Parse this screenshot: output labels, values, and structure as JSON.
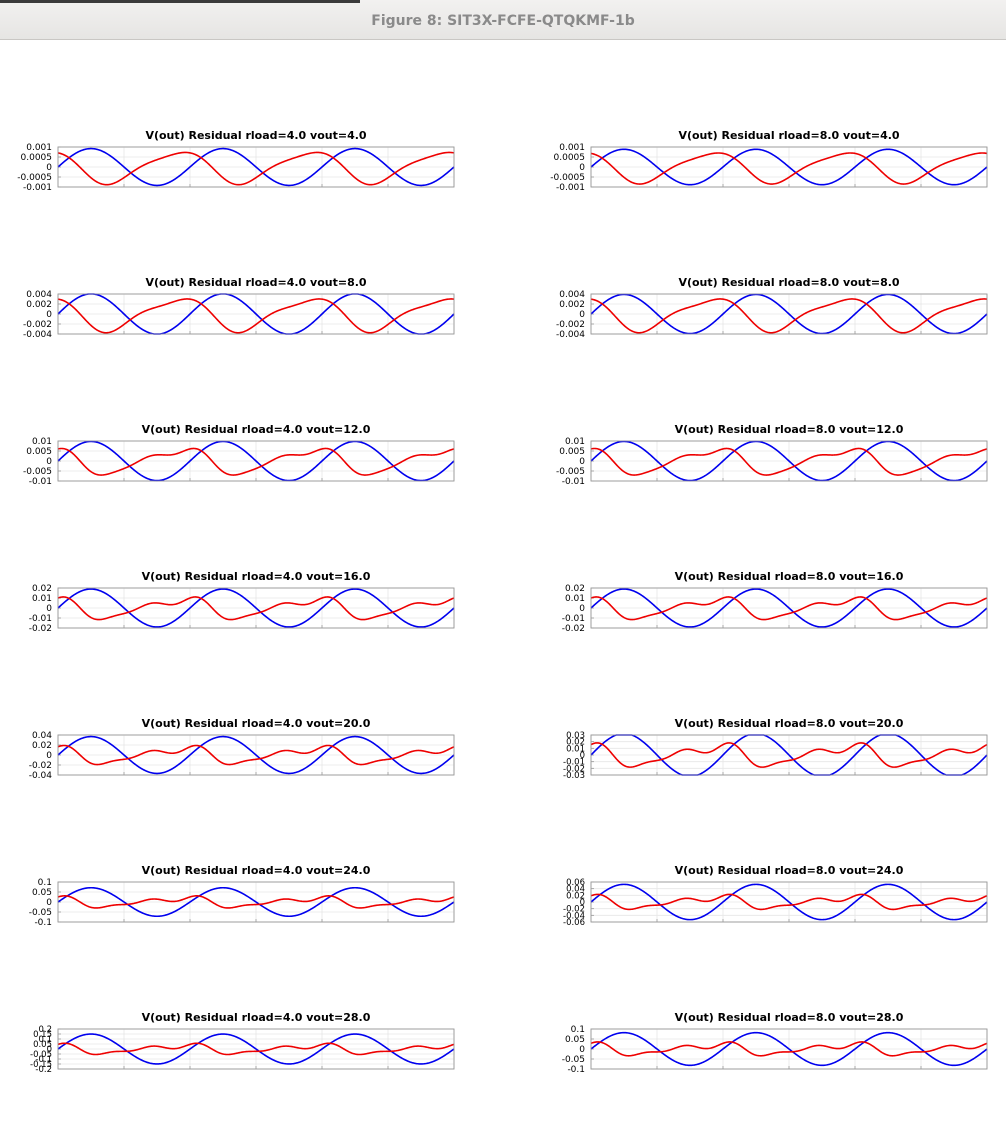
{
  "window": {
    "title": "Figure 8: SIT3X-FCFE-QTQKMF-1b"
  },
  "colors": {
    "blue_series": "#0000ee",
    "red_series": "#ee0000",
    "grid": "#e6e6e6",
    "axes": "#999999"
  },
  "chart_data": [
    {
      "type": "line",
      "title": "V(out) Residual  rload=4.0 vout=4.0",
      "ylim": [
        -0.001,
        0.001
      ],
      "yticks": [
        "0.001",
        "0.0005",
        "0",
        "-0.0005",
        "-0.001"
      ],
      "grid": true,
      "cycles": 3,
      "series": [
        {
          "color": "blue",
          "amplitude": 0.0008,
          "phase": 0,
          "harmonics": []
        },
        {
          "color": "red",
          "amplitude": 0.0008,
          "phase": 2.2,
          "harmonics": [
            [
              2,
              0.2,
              0.6
            ]
          ]
        }
      ]
    },
    {
      "type": "line",
      "title": "V(out) Residual  rload=8.0 vout=4.0",
      "ylim": [
        -0.001,
        0.001
      ],
      "yticks": [
        "0.001",
        "0.0005",
        "0",
        "-0.0005",
        "-0.001"
      ],
      "grid": true,
      "cycles": 3,
      "series": [
        {
          "color": "blue",
          "amplitude": 0.00077,
          "phase": 0,
          "harmonics": []
        },
        {
          "color": "red",
          "amplitude": 0.00077,
          "phase": 2.2,
          "harmonics": [
            [
              2,
              0.2,
              0.6
            ]
          ]
        }
      ]
    },
    {
      "type": "line",
      "title": "V(out) Residual  rload=4.0 vout=8.0",
      "ylim": [
        -0.004,
        0.004
      ],
      "yticks": [
        "0.004",
        "0.002",
        "0",
        "-0.002",
        "-0.004"
      ],
      "grid": true,
      "cycles": 3,
      "series": [
        {
          "color": "blue",
          "amplitude": 0.0035,
          "phase": 0,
          "harmonics": []
        },
        {
          "color": "red",
          "amplitude": 0.0034,
          "phase": 2.2,
          "harmonics": [
            [
              2,
              0.25,
              0.6
            ]
          ]
        }
      ]
    },
    {
      "type": "line",
      "title": "V(out) Residual  rload=8.0 vout=8.0",
      "ylim": [
        -0.004,
        0.004
      ],
      "yticks": [
        "0.004",
        "0.002",
        "0",
        "-0.002",
        "-0.004"
      ],
      "grid": true,
      "cycles": 3,
      "series": [
        {
          "color": "blue",
          "amplitude": 0.0034,
          "phase": 0,
          "harmonics": []
        },
        {
          "color": "red",
          "amplitude": 0.0034,
          "phase": 2.2,
          "harmonics": [
            [
              2,
              0.25,
              0.6
            ]
          ]
        }
      ]
    },
    {
      "type": "line",
      "title": "V(out) Residual  rload=4.0 vout=12.0",
      "ylim": [
        -0.01,
        0.01
      ],
      "yticks": [
        "0.01",
        "0.005",
        "0",
        "-0.005",
        "-0.01"
      ],
      "grid": true,
      "cycles": 3,
      "series": [
        {
          "color": "blue",
          "amplitude": 0.0085,
          "phase": 0,
          "harmonics": []
        },
        {
          "color": "red",
          "amplitude": 0.0075,
          "phase": 2.2,
          "harmonics": [
            [
              2,
              0.35,
              0.6
            ],
            [
              3,
              0.15,
              0.3
            ]
          ]
        }
      ]
    },
    {
      "type": "line",
      "title": "V(out) Residual  rload=8.0 vout=12.0",
      "ylim": [
        -0.01,
        0.01
      ],
      "yticks": [
        "0.01",
        "0.005",
        "0",
        "-0.005",
        "-0.01"
      ],
      "grid": true,
      "cycles": 3,
      "series": [
        {
          "color": "blue",
          "amplitude": 0.0085,
          "phase": 0,
          "harmonics": []
        },
        {
          "color": "red",
          "amplitude": 0.0075,
          "phase": 2.2,
          "harmonics": [
            [
              2,
              0.35,
              0.6
            ],
            [
              3,
              0.15,
              0.3
            ]
          ]
        }
      ]
    },
    {
      "type": "line",
      "title": "V(out) Residual  rload=4.0 vout=16.0",
      "ylim": [
        -0.02,
        0.02
      ],
      "yticks": [
        "0.02",
        "0.01",
        "0",
        "-0.01",
        "-0.02"
      ],
      "grid": true,
      "cycles": 3,
      "series": [
        {
          "color": "blue",
          "amplitude": 0.0165,
          "phase": 0,
          "harmonics": []
        },
        {
          "color": "red",
          "amplitude": 0.013,
          "phase": 2.2,
          "harmonics": [
            [
              2,
              0.45,
              0.6
            ],
            [
              3,
              0.25,
              0.3
            ]
          ]
        }
      ]
    },
    {
      "type": "line",
      "title": "V(out) Residual  rload=8.0 vout=16.0",
      "ylim": [
        -0.02,
        0.02
      ],
      "yticks": [
        "0.02",
        "0.01",
        "0",
        "-0.01",
        "-0.02"
      ],
      "grid": true,
      "cycles": 3,
      "series": [
        {
          "color": "blue",
          "amplitude": 0.0165,
          "phase": 0,
          "harmonics": []
        },
        {
          "color": "red",
          "amplitude": 0.013,
          "phase": 2.2,
          "harmonics": [
            [
              2,
              0.45,
              0.6
            ],
            [
              3,
              0.25,
              0.3
            ]
          ]
        }
      ]
    },
    {
      "type": "line",
      "title": "V(out) Residual  rload=4.0 vout=20.0",
      "ylim": [
        -0.04,
        0.04
      ],
      "yticks": [
        "0.04",
        "0.02",
        "0",
        "-0.02",
        "-0.04"
      ],
      "grid": true,
      "cycles": 3,
      "series": [
        {
          "color": "blue",
          "amplitude": 0.032,
          "phase": 0,
          "harmonics": []
        },
        {
          "color": "red",
          "amplitude": 0.022,
          "phase": 2.2,
          "harmonics": [
            [
              2,
              0.5,
              0.6
            ],
            [
              3,
              0.35,
              0.3
            ]
          ]
        }
      ]
    },
    {
      "type": "line",
      "title": "V(out) Residual  rload=8.0 vout=20.0",
      "ylim": [
        -0.03,
        0.03
      ],
      "yticks": [
        "0.03",
        "0.02",
        "0.01",
        "0",
        "-0.01",
        "-0.02",
        "-0.03"
      ],
      "grid": true,
      "cycles": 3,
      "series": [
        {
          "color": "blue",
          "amplitude": 0.028,
          "phase": 0,
          "harmonics": []
        },
        {
          "color": "red",
          "amplitude": 0.021,
          "phase": 2.2,
          "harmonics": [
            [
              2,
              0.5,
              0.6
            ],
            [
              3,
              0.35,
              0.3
            ]
          ]
        }
      ]
    },
    {
      "type": "line",
      "title": "V(out) Residual  rload=4.0 vout=24.0",
      "ylim": [
        -0.1,
        0.1
      ],
      "yticks": [
        "0.1",
        "0.05",
        "0",
        "-0.05",
        "-0.1"
      ],
      "grid": true,
      "cycles": 3,
      "series": [
        {
          "color": "blue",
          "amplitude": 0.062,
          "phase": 0,
          "harmonics": []
        },
        {
          "color": "red",
          "amplitude": 0.035,
          "phase": 2.2,
          "harmonics": [
            [
              2,
              0.55,
              0.6
            ],
            [
              3,
              0.45,
              0.3
            ]
          ]
        }
      ]
    },
    {
      "type": "line",
      "title": "V(out) Residual  rload=8.0 vout=24.0",
      "ylim": [
        -0.06,
        0.06
      ],
      "yticks": [
        "0.06",
        "0.04",
        "0.02",
        "0",
        "-0.02",
        "-0.04",
        "-0.06"
      ],
      "grid": true,
      "cycles": 3,
      "series": [
        {
          "color": "blue",
          "amplitude": 0.046,
          "phase": 0,
          "harmonics": []
        },
        {
          "color": "red",
          "amplitude": 0.026,
          "phase": 2.2,
          "harmonics": [
            [
              2,
              0.55,
              0.6
            ],
            [
              3,
              0.45,
              0.3
            ]
          ]
        }
      ]
    },
    {
      "type": "line",
      "title": "V(out) Residual  rload=4.0 vout=28.0",
      "ylim": [
        -0.2,
        0.2
      ],
      "yticks": [
        "0.2",
        "0.15",
        "0.1",
        "0.05",
        "0",
        "-0.05",
        "-0.1",
        "-0.15",
        "-0.2"
      ],
      "grid": true,
      "cycles": 3,
      "series": [
        {
          "color": "blue",
          "amplitude": 0.13,
          "phase": 0,
          "harmonics": []
        },
        {
          "color": "red",
          "amplitude": 0.065,
          "phase": 2.2,
          "harmonics": [
            [
              2,
              0.55,
              0.6
            ],
            [
              3,
              0.5,
              0.3
            ]
          ]
        }
      ]
    },
    {
      "type": "line",
      "title": "V(out) Residual  rload=8.0 vout=28.0",
      "ylim": [
        -0.1,
        0.1
      ],
      "yticks": [
        "0.1",
        "0.05",
        "0",
        "-0.05",
        "-0.1"
      ],
      "grid": true,
      "cycles": 3,
      "series": [
        {
          "color": "blue",
          "amplitude": 0.071,
          "phase": 0,
          "harmonics": []
        },
        {
          "color": "red",
          "amplitude": 0.04,
          "phase": 2.2,
          "harmonics": [
            [
              2,
              0.55,
              0.6
            ],
            [
              3,
              0.5,
              0.3
            ]
          ]
        }
      ]
    }
  ]
}
